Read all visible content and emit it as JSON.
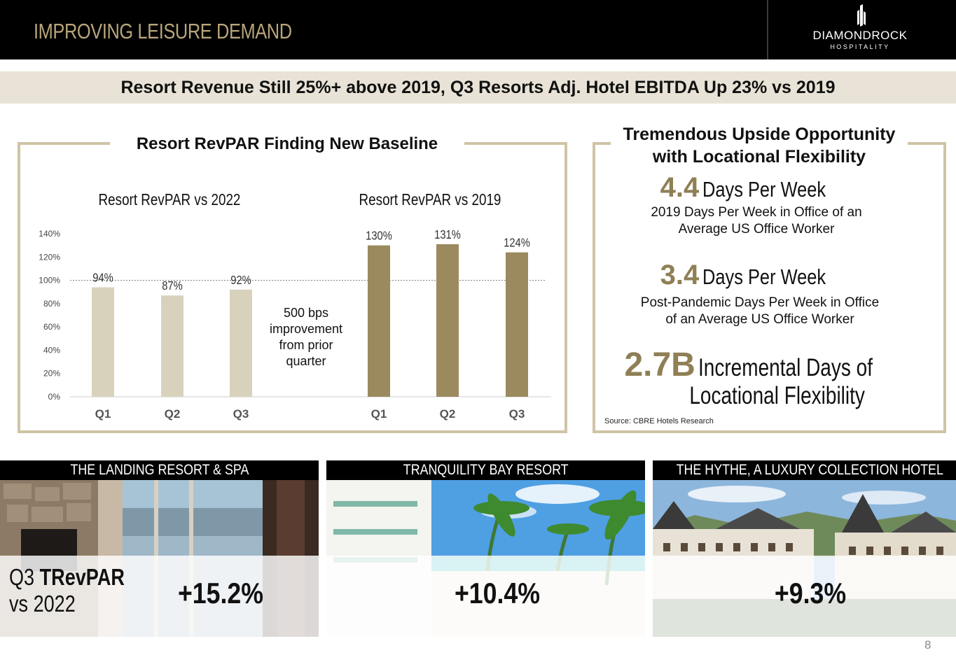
{
  "header": {
    "title": "IMPROVING LEISURE DEMAND",
    "logo_name": "DIAMONDROCK",
    "logo_sub": "HOSPITALITY"
  },
  "banner": {
    "text": "Resort Revenue Still 25%+ above 2019, Q3 Resorts Adj. Hotel EBITDA Up 23% vs 2019"
  },
  "chart_panel": {
    "title": "Resort RevPAR Finding New Baseline"
  },
  "chart_data": {
    "type": "bar",
    "title": "Resort RevPAR Finding New Baseline",
    "y_ticks": [
      "0%",
      "20%",
      "40%",
      "60%",
      "80%",
      "100%",
      "120%",
      "140%"
    ],
    "ylim": [
      0,
      140
    ],
    "reference_line": 100,
    "groups": [
      {
        "name": "Resort RevPAR vs 2022",
        "categories": [
          "Q1",
          "Q2",
          "Q3"
        ],
        "values": [
          94,
          87,
          92
        ],
        "labels": [
          "94%",
          "87%",
          "92%"
        ],
        "color": "#d8d2bd"
      },
      {
        "name": "Resort RevPAR vs 2019",
        "categories": [
          "Q1",
          "Q2",
          "Q3"
        ],
        "values": [
          130,
          131,
          124
        ],
        "labels": [
          "130%",
          "131%",
          "124%"
        ],
        "color": "#9a8a5e"
      }
    ],
    "annotation": [
      "500 bps",
      "improvement",
      "from prior",
      "quarter"
    ]
  },
  "right_panel": {
    "title_line1": "Tremendous Upside Opportunity",
    "title_line2": "with Locational Flexibility",
    "stat1_num": "4.4",
    "stat1_unit": "Days Per Week",
    "stat1_desc_line1": "2019 Days Per Week in Office of an",
    "stat1_desc_line2": "Average US Office Worker",
    "stat2_num": "3.4",
    "stat2_unit": "Days Per Week",
    "stat2_desc_line1": "Post-Pandemic Days Per Week in Office",
    "stat2_desc_line2": "of an Average US Office Worker",
    "stat3_num": "2.7B",
    "stat3_unit_line1": "Incremental Days of",
    "stat3_unit_line2": "Locational Flexibility",
    "source": "Source:  CBRE Hotels Research"
  },
  "properties": [
    {
      "name": "THE LANDING RESORT & SPA",
      "change": "+15.2%"
    },
    {
      "name": "TRANQUILITY  BAY RESORT",
      "change": "+10.4%"
    },
    {
      "name": "THE HYTHE, A LUXURY COLLECTION HOTEL",
      "change": "+9.3%"
    }
  ],
  "trevpar_label": {
    "prefix": "Q3 ",
    "bold": "TRevPAR",
    "line2": "vs 2022"
  },
  "page_number": "8",
  "colors": {
    "gold": "#b8a57a",
    "bar_light": "#d8d2bd",
    "bar_dark": "#9a8a5e",
    "frame": "#cfc4a6"
  }
}
